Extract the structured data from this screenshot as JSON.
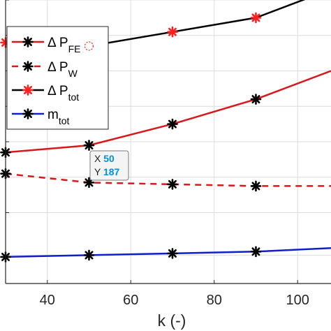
{
  "chart_data": {
    "type": "line",
    "xlabel": "k  (-)",
    "ylabel": "",
    "title": "",
    "xlim": [
      30,
      108
    ],
    "ylim": [
      120,
      200
    ],
    "xticks": [
      40,
      60,
      80,
      100
    ],
    "xtick_labels": [
      "40",
      "60",
      "80",
      "100"
    ],
    "yticks": [
      128,
      140,
      150,
      160,
      170,
      180,
      190,
      200
    ],
    "grid": true,
    "legend_position": "top-left",
    "series": [
      {
        "name": "ΔP_FE",
        "legend_main": "Δ P",
        "legend_sub": "FE",
        "color": "#d7191c",
        "linestyle": "solid",
        "marker": "*",
        "marker_color": "#000000",
        "x": [
          30,
          50,
          70,
          90,
          108
        ],
        "y": [
          157,
          159,
          165,
          172,
          180
        ]
      },
      {
        "name": "ΔP_W",
        "legend_main": "Δ P",
        "legend_sub": "W",
        "color": "#d7191c",
        "linestyle": "dashed",
        "marker": "*",
        "marker_color": "#000000",
        "x": [
          30,
          50,
          70,
          90,
          108
        ],
        "y": [
          151,
          148.5,
          148,
          147.5,
          147.5
        ]
      },
      {
        "name": "ΔP_tot",
        "legend_main": "Δ P",
        "legend_sub": "tot",
        "color": "#000000",
        "linestyle": "solid",
        "marker": "*",
        "marker_color": "#ff2020",
        "x": [
          30,
          50,
          70,
          90,
          108
        ],
        "y": [
          188,
          187,
          191,
          195,
          203
        ]
      },
      {
        "name": "m_tot",
        "legend_main": "m",
        "legend_sub": "tot",
        "color": "#1020c8",
        "linestyle": "solid",
        "marker": "*",
        "marker_color": "#000000",
        "x": [
          30,
          50,
          70,
          90,
          108
        ],
        "y": [
          127.5,
          128,
          128.5,
          129,
          130
        ]
      }
    ],
    "datatip": {
      "x": 50,
      "y": 187,
      "x_label": "X",
      "y_label": "Y",
      "x_text": "50",
      "y_text": "187",
      "value_color": "#0090e0"
    }
  }
}
